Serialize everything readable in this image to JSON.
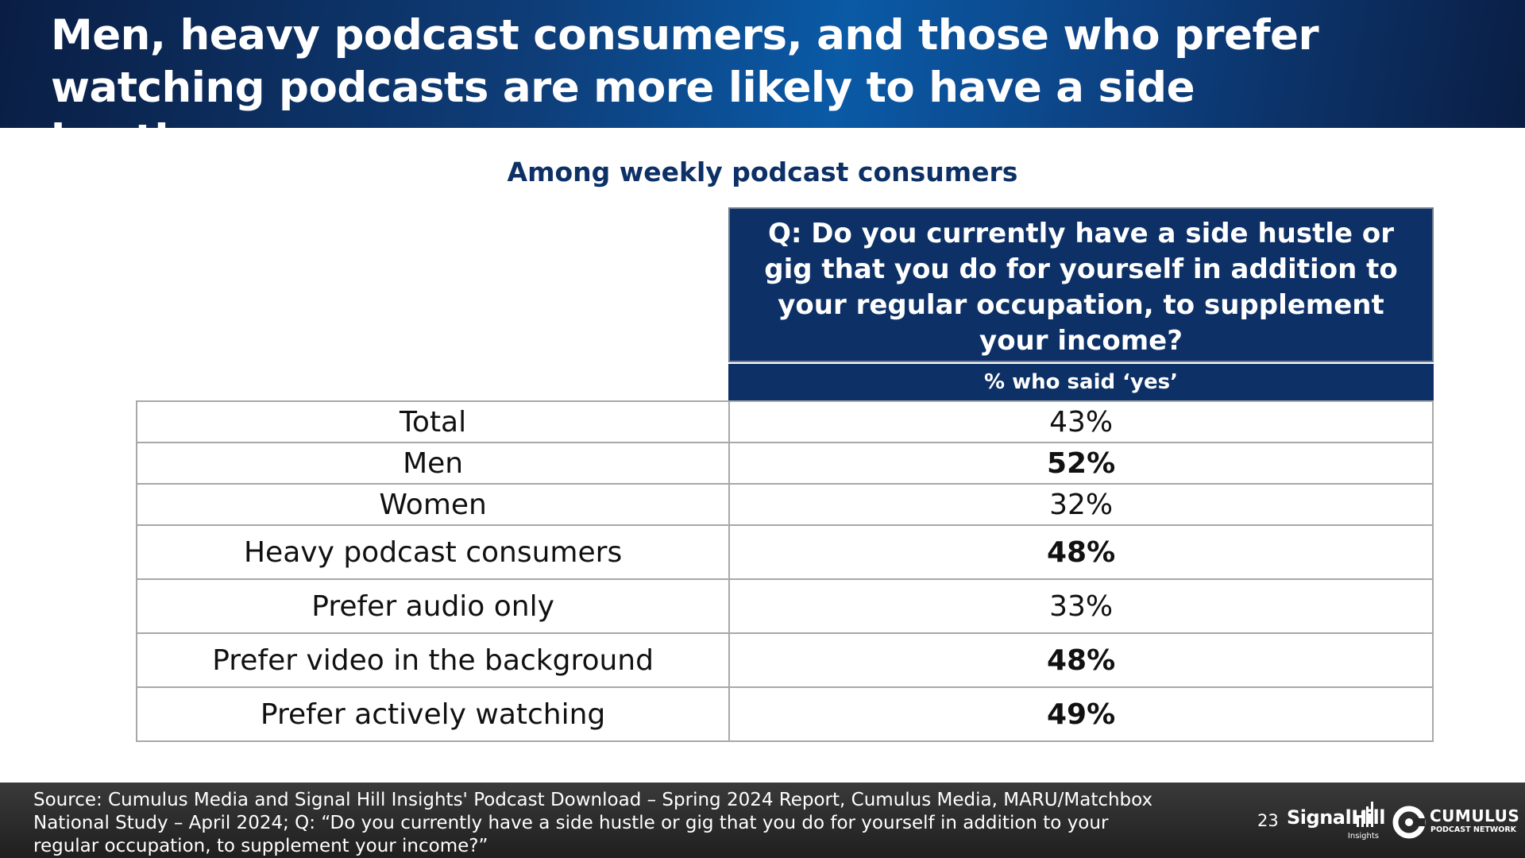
{
  "title": {
    "line1": "Men, heavy podcast consumers, and those who prefer",
    "line2": "watching podcasts are more likely to have a side hustle"
  },
  "subtitle": "Among weekly podcast consumers",
  "table": {
    "question": "Q: Do you currently have a side hustle or gig that you do for yourself in addition to your regular occupation, to supplement your income?",
    "subheader": "% who said ‘yes’",
    "rows": [
      {
        "label": "Total",
        "value": "43%",
        "bold": false
      },
      {
        "label": "Men",
        "value": "52%",
        "bold": true
      },
      {
        "label": "Women",
        "value": "32%",
        "bold": false
      },
      {
        "label": "Heavy podcast consumers",
        "value": "48%",
        "bold": true
      },
      {
        "label": "Prefer audio only",
        "value": "33%",
        "bold": false
      },
      {
        "label": "Prefer video in the background",
        "value": "48%",
        "bold": true
      },
      {
        "label": "Prefer actively watching",
        "value": "49%",
        "bold": true
      }
    ]
  },
  "footer": {
    "source": "Source: Cumulus Media and Signal Hill Insights' Podcast Download – Spring 2024 Report, Cumulus Media, MARU/Matchbox National Study – April 2024; Q: “Do you currently have a side hustle or gig that you do for yourself in addition to your regular occupation, to supplement your income?”",
    "page_number": "23",
    "logos": {
      "signal_hill": {
        "name": "SignalHill",
        "sub": "Insights"
      },
      "cumulus": {
        "name": "CUMULUS",
        "sub": "PODCAST NETWORK"
      }
    }
  },
  "colors": {
    "navy": "#0d3166",
    "title_gradient": [
      "#0a1e44",
      "#0a5aa6"
    ],
    "footer_bg": "#2b2b2b",
    "table_border": "#a8a8a8"
  }
}
